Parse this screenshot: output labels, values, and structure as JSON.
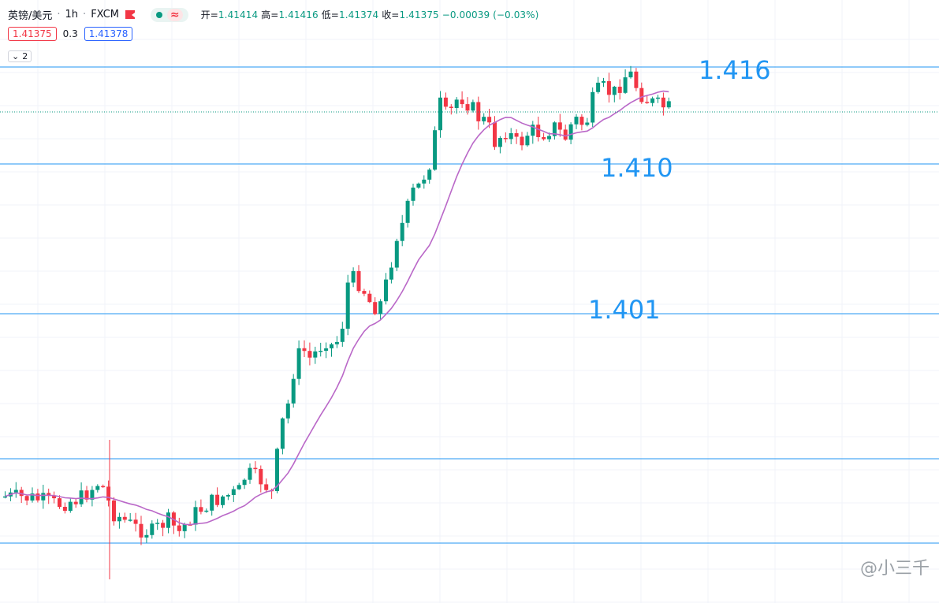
{
  "header": {
    "symbol": "英镑/美元",
    "sep1": "·",
    "interval": "1h",
    "sep2": "·",
    "source": "FXCM",
    "wave_icon": "≈",
    "ohlc": {
      "open_label": "开=",
      "open": "1.41414",
      "high_label": "高=",
      "high": "1.41416",
      "low_label": "低=",
      "low": "1.41374",
      "close_label": "收=",
      "close": "1.41375",
      "change": "−0.00039 (−0.03%)"
    },
    "sell_price": "1.41375",
    "spread": "0.3",
    "buy_price": "1.41378",
    "indicators_toggle_count": "2"
  },
  "levels": [
    {
      "label": "1.416",
      "price": 1.416
    },
    {
      "label": "1.410",
      "price": 1.41
    },
    {
      "label": "1.401",
      "price": 1.401
    }
  ],
  "watermark": "@小三千",
  "colors": {
    "up": "#089981",
    "down": "#f23645",
    "level_line": "#2196f3",
    "ma_line": "#ba68c8"
  }
}
